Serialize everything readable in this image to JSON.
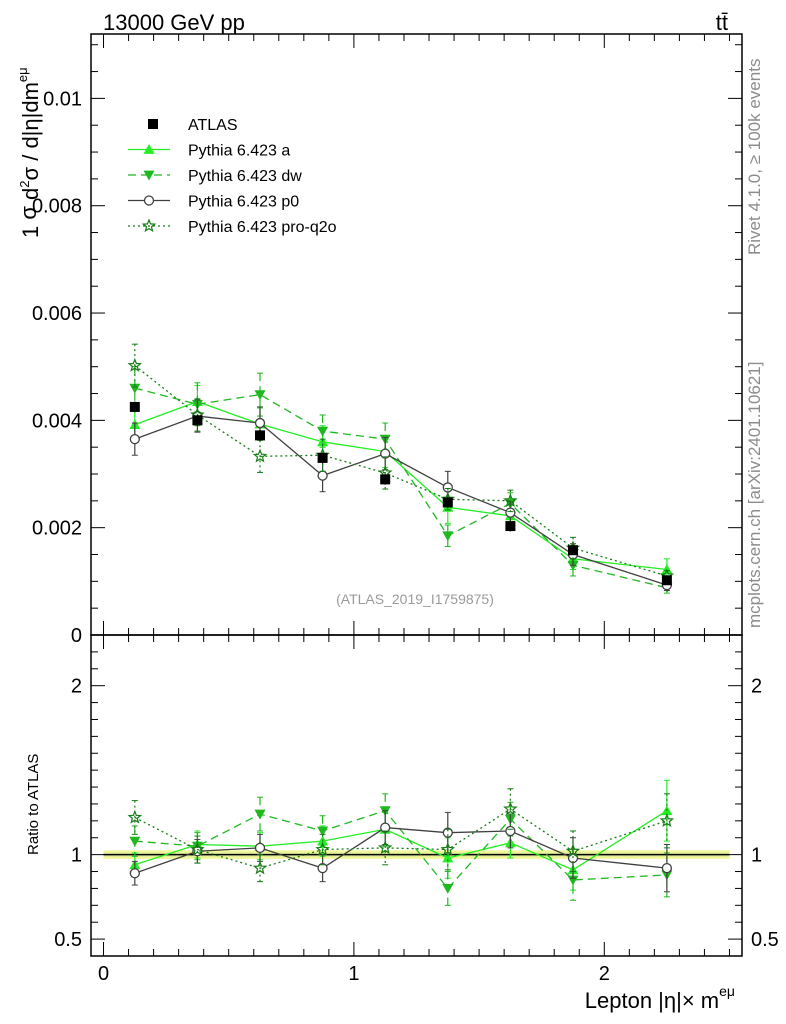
{
  "header": {
    "energy_label": "13000 GeV pp",
    "process_label": "tt̄"
  },
  "side_labels": {
    "rivet": "Rivet 4.1.0, ≥ 100k events",
    "mcplots": "mcplots.cern.ch [arXiv:2401.10621]"
  },
  "chart_data": [
    {
      "type": "line",
      "panel": "main",
      "ylabel_parts": [
        "1 ",
        "σ",
        " d",
        "2",
        "σ / d|η|dm",
        "eμ"
      ],
      "ylim": [
        0,
        0.0112
      ],
      "xlim": [
        -0.05,
        2.55
      ],
      "yticks": [
        0,
        0.002,
        0.004,
        0.006,
        0.008,
        0.01
      ],
      "ytick_labels": [
        "0",
        "0.002",
        "0.004",
        "0.006",
        "0.008",
        "0.01"
      ],
      "watermark": "(ATLAS_2019_I1759875)",
      "x": [
        0.125,
        0.375,
        0.625,
        0.875,
        1.125,
        1.375,
        1.625,
        1.875,
        2.25
      ],
      "data": {
        "name": "ATLAS",
        "values": [
          0.00425,
          0.004,
          0.00372,
          0.0033,
          0.0029,
          0.00247,
          0.00203,
          0.00158,
          0.00102
        ],
        "errors": [
          0.0001,
          0.0001,
          0.0001,
          0.0001,
          0.0001,
          0.0001,
          0.0001,
          8e-05,
          6e-05
        ]
      },
      "series": [
        {
          "name": "Pythia 6.423 a",
          "color": "#22ee22",
          "dash": "",
          "marker": "triangle-up",
          "values": [
            0.00392,
            0.00435,
            0.00393,
            0.0036,
            0.00342,
            0.00238,
            0.00222,
            0.00142,
            0.00122
          ],
          "errors": [
            0.0003,
            0.0003,
            0.0003,
            0.0003,
            0.0003,
            0.0003,
            0.0002,
            0.0002,
            0.0002
          ]
        },
        {
          "name": "Pythia 6.423 dw",
          "color": "#1fb81f",
          "dash": "8,5",
          "marker": "triangle-down",
          "values": [
            0.0046,
            0.0043,
            0.00448,
            0.0038,
            0.00365,
            0.00185,
            0.00245,
            0.0013,
            0.00088
          ],
          "errors": [
            0.0004,
            0.0004,
            0.0004,
            0.0003,
            0.0003,
            0.0002,
            0.0002,
            0.0002,
            0.0001
          ]
        },
        {
          "name": "Pythia 6.423 p0",
          "color": "#404040",
          "dash": "",
          "marker": "open-circle",
          "values": [
            0.00365,
            0.00408,
            0.00395,
            0.00297,
            0.00338,
            0.00275,
            0.00228,
            0.0015,
            0.00093
          ],
          "errors": [
            0.0003,
            0.0003,
            0.0003,
            0.0003,
            0.0003,
            0.0003,
            0.0002,
            0.0002,
            0.0001
          ]
        },
        {
          "name": "Pythia 6.423 pro-q2o",
          "color": "#167d16",
          "dash": "2,3",
          "marker": "open-star",
          "values": [
            0.00502,
            0.0041,
            0.00333,
            0.00335,
            0.00302,
            0.00253,
            0.0025,
            0.00162,
            0.0011
          ],
          "errors": [
            0.0004,
            0.0003,
            0.0003,
            0.0003,
            0.0003,
            0.0002,
            0.0002,
            0.0002,
            0.0001
          ]
        }
      ],
      "legend": [
        "ATLAS",
        "Pythia 6.423 a",
        "Pythia 6.423 dw",
        "Pythia 6.423 p0",
        "Pythia 6.423 pro-q2o"
      ],
      "legend_position": "top-left"
    },
    {
      "type": "line",
      "panel": "ratio",
      "ylabel": "Ratio to ATLAS",
      "ylim": [
        0.4,
        2.3
      ],
      "yticks": [
        0.5,
        1,
        2
      ],
      "ytick_labels": [
        "0.5",
        "1",
        "2"
      ],
      "xlabel_parts": [
        "Lepton |η|× m",
        "eμ"
      ],
      "xticks": [
        0,
        1,
        2
      ],
      "xtick_labels": [
        "0",
        "1",
        "2"
      ],
      "band_halfwidth": 0.025,
      "series": [
        {
          "name": "Pythia 6.423 a",
          "values": [
            0.94,
            1.06,
            1.05,
            1.08,
            1.15,
            0.98,
            1.07,
            0.91,
            1.26
          ],
          "errors": [
            0.07,
            0.08,
            0.08,
            0.09,
            0.1,
            0.12,
            0.09,
            0.12,
            0.18
          ]
        },
        {
          "name": "Pythia 6.423 dw",
          "values": [
            1.08,
            1.05,
            1.24,
            1.14,
            1.26,
            0.8,
            1.21,
            0.85,
            0.88
          ],
          "errors": [
            0.09,
            0.08,
            0.1,
            0.09,
            0.1,
            0.1,
            0.1,
            0.12,
            0.13
          ]
        },
        {
          "name": "Pythia 6.423 p0",
          "values": [
            0.89,
            1.02,
            1.04,
            0.92,
            1.16,
            1.13,
            1.14,
            0.98,
            0.92
          ],
          "errors": [
            0.07,
            0.07,
            0.08,
            0.08,
            0.1,
            0.12,
            0.1,
            0.12,
            0.14
          ]
        },
        {
          "name": "Pythia 6.423 pro-q2o",
          "values": [
            1.22,
            1.03,
            0.92,
            1.03,
            1.04,
            1.03,
            1.27,
            1.02,
            1.2
          ],
          "errors": [
            0.1,
            0.08,
            0.08,
            0.09,
            0.1,
            0.12,
            0.12,
            0.12,
            0.16
          ]
        }
      ]
    }
  ]
}
